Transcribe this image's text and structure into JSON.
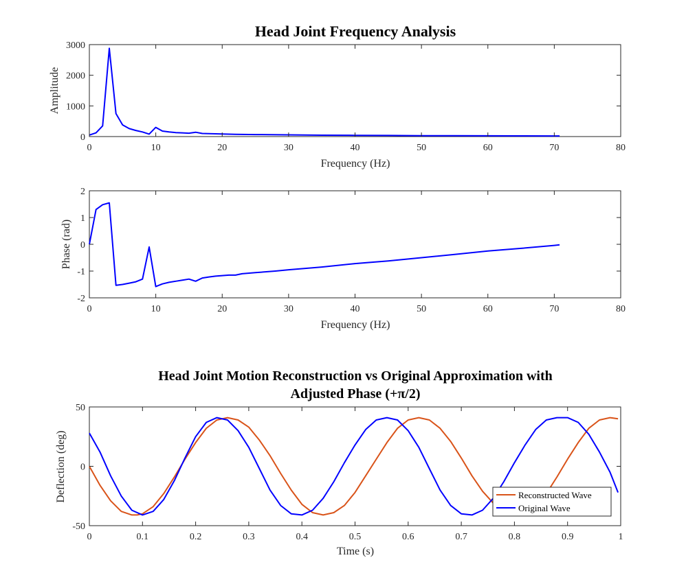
{
  "figure": {
    "width": 998,
    "height": 851
  },
  "colors": {
    "amplitude_line": "#0000ff",
    "phase_line": "#0000ff",
    "reconstructed": "#d95319",
    "original": "#0000ff",
    "axis": "#262626"
  },
  "chart_data": [
    {
      "type": "line",
      "title": "Head Joint Frequency Analysis",
      "xlabel": "Frequency (Hz)",
      "ylabel": "Amplitude",
      "xlim": [
        0,
        80
      ],
      "ylim": [
        0,
        3000
      ],
      "xticks": [
        0,
        10,
        20,
        30,
        40,
        50,
        60,
        70,
        80
      ],
      "yticks": [
        0,
        1000,
        2000,
        3000
      ],
      "series": [
        {
          "x": [
            0,
            1,
            2,
            3,
            4,
            5,
            6,
            7,
            8,
            9,
            10,
            11,
            12,
            13,
            14,
            15,
            16,
            17,
            18,
            19,
            20,
            22,
            25,
            30,
            35,
            40,
            45,
            50,
            55,
            60,
            65,
            70,
            70.8
          ],
          "y": [
            50,
            120,
            350,
            2880,
            750,
            380,
            260,
            200,
            150,
            80,
            300,
            180,
            150,
            130,
            120,
            110,
            140,
            100,
            95,
            90,
            85,
            75,
            65,
            55,
            45,
            40,
            35,
            30,
            28,
            25,
            22,
            20,
            20
          ]
        }
      ]
    },
    {
      "type": "line",
      "title": "",
      "xlabel": "Frequency (Hz)",
      "ylabel": "Phase (rad)",
      "xlim": [
        0,
        80
      ],
      "ylim": [
        -2,
        2
      ],
      "xticks": [
        0,
        10,
        20,
        30,
        40,
        50,
        60,
        70,
        80
      ],
      "yticks": [
        -2,
        -1,
        0,
        1,
        2
      ],
      "series": [
        {
          "x": [
            0,
            1,
            2,
            3,
            4,
            5,
            6,
            7,
            8,
            9,
            10,
            11,
            12,
            13,
            14,
            15,
            16,
            17,
            18,
            19,
            20,
            21,
            22,
            23,
            25,
            28,
            30,
            35,
            40,
            45,
            50,
            55,
            60,
            65,
            70,
            70.8
          ],
          "y": [
            0,
            1.3,
            1.48,
            1.55,
            -1.53,
            -1.5,
            -1.45,
            -1.4,
            -1.3,
            -0.1,
            -1.58,
            -1.48,
            -1.42,
            -1.38,
            -1.34,
            -1.3,
            -1.38,
            -1.26,
            -1.22,
            -1.19,
            -1.17,
            -1.15,
            -1.15,
            -1.1,
            -1.06,
            -1.0,
            -0.95,
            -0.85,
            -0.72,
            -0.62,
            -0.5,
            -0.38,
            -0.25,
            -0.15,
            -0.04,
            -0.02
          ]
        }
      ]
    },
    {
      "type": "line",
      "title": "Head Joint Motion Reconstruction vs Original Approximation with",
      "subtitle": "Adjusted Phase (+π/2)",
      "xlabel": "Time (s)",
      "ylabel": "Deflection (deg)",
      "xlim": [
        0,
        1
      ],
      "ylim": [
        -50,
        50
      ],
      "xticks": [
        0,
        0.1,
        0.2,
        0.3,
        0.4,
        0.5,
        0.6,
        0.7,
        0.8,
        0.9,
        1
      ],
      "yticks": [
        -50,
        0,
        50
      ],
      "legend_position": "bottom-right",
      "series": [
        {
          "name": "Reconstructed Wave",
          "x": [
            0,
            0.02,
            0.04,
            0.06,
            0.08,
            0.09,
            0.1,
            0.12,
            0.14,
            0.16,
            0.18,
            0.2,
            0.22,
            0.24,
            0.26,
            0.28,
            0.3,
            0.32,
            0.34,
            0.36,
            0.38,
            0.4,
            0.42,
            0.44,
            0.46,
            0.48,
            0.5,
            0.52,
            0.54,
            0.56,
            0.58,
            0.6,
            0.62,
            0.64,
            0.66,
            0.68,
            0.7,
            0.72,
            0.74,
            0.76,
            0.78,
            0.8,
            0.82,
            0.84,
            0.86,
            0.88,
            0.9,
            0.92,
            0.94,
            0.96,
            0.98,
            0.995
          ],
          "y": [
            0,
            -16,
            -29,
            -38,
            -41,
            -41,
            -40,
            -34,
            -23,
            -9,
            6,
            20,
            32,
            39,
            41,
            39,
            33,
            22,
            9,
            -6,
            -20,
            -32,
            -39,
            -41,
            -39,
            -33,
            -22,
            -8,
            6,
            20,
            32,
            39,
            41,
            39,
            32,
            21,
            7,
            -8,
            -21,
            -31,
            -38,
            -41,
            -40,
            -34,
            -23,
            -9,
            6,
            20,
            32,
            39,
            41,
            40
          ]
        },
        {
          "name": "Original Wave",
          "x": [
            0,
            0.02,
            0.04,
            0.06,
            0.08,
            0.1,
            0.12,
            0.14,
            0.16,
            0.18,
            0.2,
            0.22,
            0.24,
            0.26,
            0.28,
            0.3,
            0.32,
            0.34,
            0.36,
            0.38,
            0.4,
            0.42,
            0.44,
            0.46,
            0.48,
            0.5,
            0.52,
            0.54,
            0.56,
            0.58,
            0.6,
            0.62,
            0.64,
            0.66,
            0.68,
            0.7,
            0.72,
            0.74,
            0.76,
            0.78,
            0.8,
            0.82,
            0.84,
            0.86,
            0.88,
            0.9,
            0.92,
            0.94,
            0.96,
            0.98,
            0.995
          ],
          "y": [
            28,
            12,
            -8,
            -25,
            -37,
            -41,
            -38,
            -28,
            -12,
            7,
            25,
            37,
            41,
            39,
            30,
            16,
            -2,
            -20,
            -33,
            -40,
            -41,
            -37,
            -27,
            -13,
            3,
            18,
            31,
            39,
            41,
            39,
            30,
            16,
            -2,
            -20,
            -33,
            -40,
            -41,
            -37,
            -27,
            -13,
            3,
            18,
            31,
            39,
            41,
            41,
            37,
            27,
            12,
            -5,
            -22
          ]
        }
      ]
    }
  ]
}
